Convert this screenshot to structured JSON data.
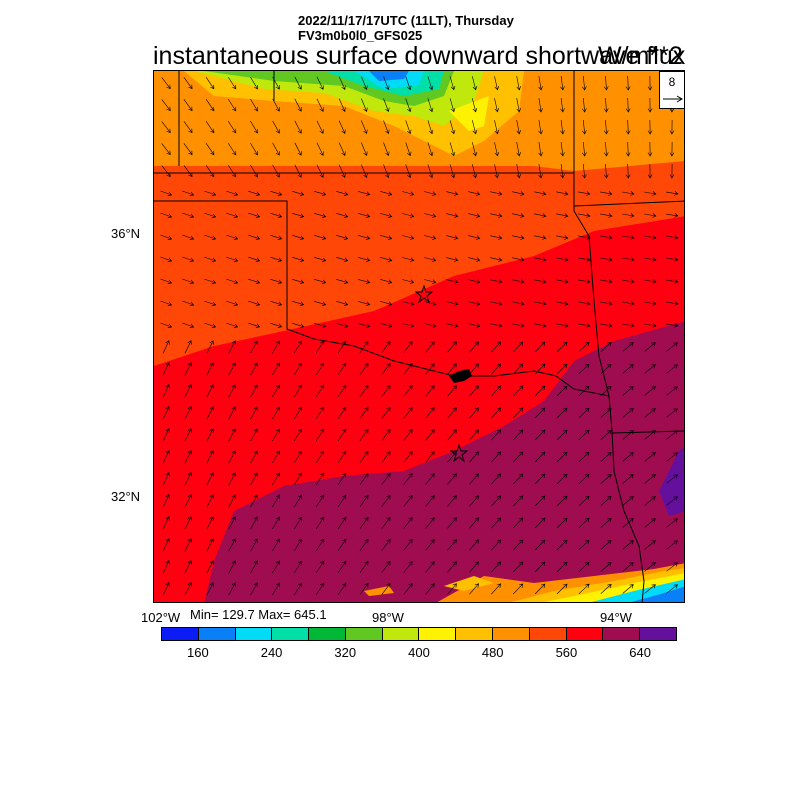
{
  "header": {
    "datetime": "2022/11/17/17UTC (11LT), Thursday",
    "model": "FV3m0b0l0_GFS025"
  },
  "title": "instantaneous surface downward shortwave flux",
  "units": "W/m**2",
  "map": {
    "region": "Oklahoma / Texas",
    "lat_labels": [
      "36°N",
      "32°N"
    ],
    "lon_labels": [
      "102°W",
      "98°W",
      "94°W"
    ],
    "stats_text": "Min= 129.7 Max= 645.1",
    "min": 129.7,
    "max": 645.1,
    "reference_vector": "8",
    "station_markers": 2
  },
  "legend": {
    "labels": [
      "160",
      "240",
      "320",
      "400",
      "480",
      "560",
      "640"
    ],
    "colors": [
      "#0c1cf6",
      "#0a80f8",
      "#00dcf8",
      "#00e0a6",
      "#00b836",
      "#60c820",
      "#c0e80c",
      "#fff200",
      "#ffc000",
      "#ff9000",
      "#ff4808",
      "#ff0010",
      "#a00c50",
      "#64109c"
    ]
  }
}
